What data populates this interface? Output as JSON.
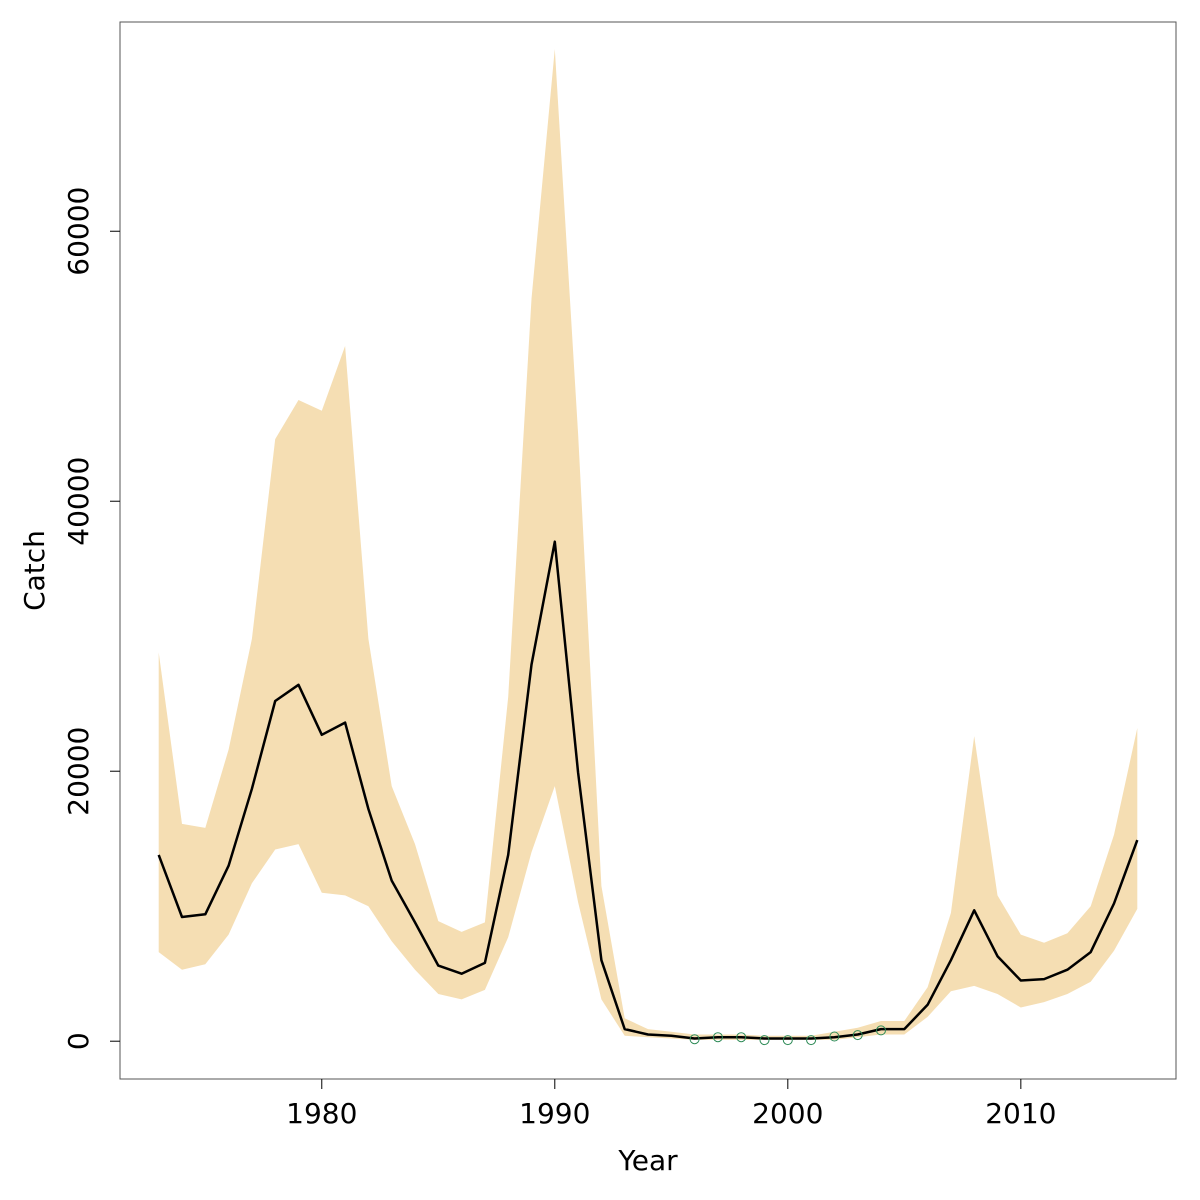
{
  "chart_data": {
    "type": "line",
    "title": "",
    "xlabel": "Year",
    "ylabel": "Catch",
    "xlim": [
      1971.3,
      1976.7
    ],
    "ylim": [
      -2800,
      75500
    ],
    "xticks": [
      1980,
      1990,
      2000,
      2010
    ],
    "yticks": [
      0,
      20000,
      40000,
      60000
    ],
    "grid": false,
    "legend": "none",
    "colors": {
      "band": "#f5deb3",
      "line": "#000000",
      "points": "#2e8b57",
      "frame": "#555555"
    },
    "x": [
      1973,
      1974,
      1975,
      1976,
      1977,
      1978,
      1979,
      1980,
      1981,
      1982,
      1983,
      1984,
      1985,
      1986,
      1987,
      1988,
      1989,
      1990,
      1991,
      1992,
      1993,
      1994,
      1995,
      1996,
      1997,
      1998,
      1999,
      2000,
      2001,
      2002,
      2003,
      2004,
      2005,
      2006,
      2007,
      2008,
      2009,
      2010,
      2011,
      2012,
      2013,
      2014,
      2015
    ],
    "series": [
      {
        "kind": "line",
        "values": [
          13800,
          9200,
          9400,
          13000,
          18700,
          25200,
          26400,
          22700,
          23600,
          17200,
          11900,
          8800,
          5600,
          5000,
          5800,
          13800,
          27900,
          37000,
          19900,
          6000,
          900,
          500,
          400,
          200,
          300,
          300,
          200,
          200,
          200,
          300,
          500,
          900,
          900,
          2700,
          6000,
          9700,
          6300,
          4500,
          4600,
          5300,
          6600,
          10200,
          14900
        ]
      },
      {
        "kind": "band-upper",
        "values": [
          28800,
          16100,
          15800,
          21600,
          29800,
          44600,
          47500,
          46700,
          51500,
          29800,
          18900,
          14600,
          8900,
          8100,
          8800,
          25500,
          55000,
          73500,
          45000,
          11500,
          1700,
          900,
          700,
          500,
          500,
          500,
          400,
          400,
          400,
          700,
          1000,
          1500,
          1500,
          4000,
          9500,
          22600,
          10800,
          7900,
          7300,
          8000,
          10000,
          15300,
          23200
        ]
      },
      {
        "kind": "band-lower",
        "values": [
          6600,
          5300,
          5700,
          7900,
          11700,
          14200,
          14600,
          11000,
          10800,
          10000,
          7400,
          5300,
          3500,
          3100,
          3800,
          7700,
          14000,
          18900,
          10300,
          3100,
          400,
          300,
          200,
          100,
          100,
          100,
          100,
          100,
          100,
          100,
          300,
          500,
          500,
          1800,
          3700,
          4100,
          3500,
          2500,
          2900,
          3500,
          4400,
          6700,
          9800
        ]
      },
      {
        "kind": "points",
        "x": [
          1996,
          1997,
          1998,
          1999,
          2000,
          2001,
          2002,
          2003,
          2004
        ],
        "values": [
          150,
          300,
          300,
          80,
          80,
          80,
          350,
          450,
          800
        ]
      }
    ]
  }
}
